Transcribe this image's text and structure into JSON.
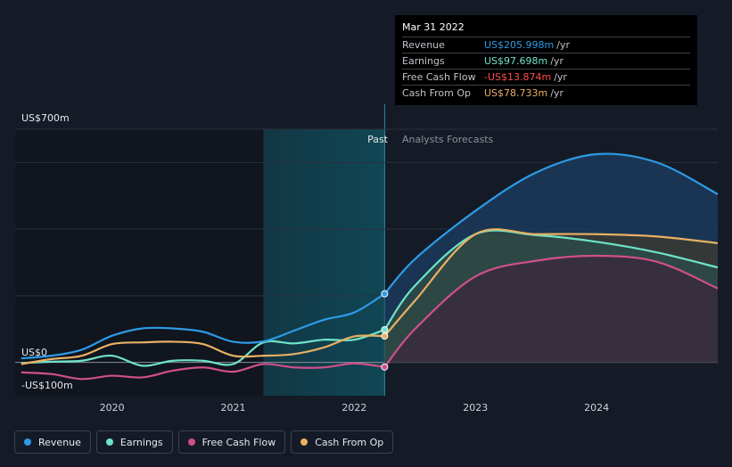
{
  "colors": {
    "revenue": "#2d9be6",
    "earnings": "#6fe3c9",
    "fcf": "#d0508a",
    "cfo": "#e8b064",
    "background": "#151b26"
  },
  "tooltip": {
    "date": "Mar 31 2022",
    "rows": [
      {
        "label": "Revenue",
        "value": "US$205.998m",
        "unit": "/yr",
        "color": "#2d9be6"
      },
      {
        "label": "Earnings",
        "value": "US$97.698m",
        "unit": "/yr",
        "color": "#6fe3c9"
      },
      {
        "label": "Free Cash Flow",
        "value": "-US$13.874m",
        "unit": "/yr",
        "color": "#ff4d4d"
      },
      {
        "label": "Cash From Op",
        "value": "US$78.733m",
        "unit": "/yr",
        "color": "#e8b064"
      }
    ]
  },
  "legend": [
    {
      "label": "Revenue",
      "color": "#2d9be6"
    },
    {
      "label": "Earnings",
      "color": "#6fe3c9"
    },
    {
      "label": "Free Cash Flow",
      "color": "#d0508a"
    },
    {
      "label": "Cash From Op",
      "color": "#e8b064"
    }
  ],
  "chart_data": {
    "type": "line",
    "title": "",
    "xlabel": "",
    "ylabel": "",
    "y_top_label": "US$700m",
    "y_zero_label": "US$0",
    "y_bottom_label": "-US$100m",
    "past_label": "Past",
    "forecast_label": "Analysts Forecasts",
    "ylim": [
      -100,
      700
    ],
    "xlim": [
      2019.2,
      2025.0
    ],
    "past_end": 2022.25,
    "highlight_start": 2021.25,
    "x_ticks": [
      {
        "value": 2020,
        "label": "2020"
      },
      {
        "value": 2021,
        "label": "2021"
      },
      {
        "value": 2022,
        "label": "2022"
      },
      {
        "value": 2023,
        "label": "2023"
      },
      {
        "value": 2024,
        "label": "2024"
      }
    ],
    "gridlines": [
      600,
      400,
      200,
      0
    ],
    "series": [
      {
        "name": "Revenue",
        "key": "revenue",
        "past": [
          [
            2019.25,
            12
          ],
          [
            2019.5,
            20
          ],
          [
            2019.75,
            38
          ],
          [
            2020.0,
            80
          ],
          [
            2020.25,
            102
          ],
          [
            2020.5,
            102
          ],
          [
            2020.75,
            92
          ],
          [
            2021.0,
            62
          ],
          [
            2021.25,
            63
          ],
          [
            2021.5,
            95
          ],
          [
            2021.75,
            128
          ],
          [
            2022.0,
            150
          ],
          [
            2022.25,
            206
          ]
        ],
        "forecast": [
          [
            2022.25,
            206
          ],
          [
            2022.5,
            310
          ],
          [
            2023.0,
            455
          ],
          [
            2023.5,
            570
          ],
          [
            2024.0,
            625
          ],
          [
            2024.5,
            600
          ],
          [
            2025.0,
            505
          ]
        ]
      },
      {
        "name": "Earnings",
        "key": "earnings",
        "past": [
          [
            2019.25,
            -2
          ],
          [
            2019.5,
            2
          ],
          [
            2019.75,
            5
          ],
          [
            2020.0,
            20
          ],
          [
            2020.25,
            -10
          ],
          [
            2020.5,
            5
          ],
          [
            2020.75,
            5
          ],
          [
            2021.0,
            -5
          ],
          [
            2021.25,
            60
          ],
          [
            2021.5,
            57
          ],
          [
            2021.75,
            68
          ],
          [
            2022.0,
            68
          ],
          [
            2022.25,
            98
          ]
        ],
        "forecast": [
          [
            2022.25,
            98
          ],
          [
            2022.5,
            230
          ],
          [
            2023.0,
            385
          ],
          [
            2023.5,
            382
          ],
          [
            2024.0,
            362
          ],
          [
            2024.5,
            330
          ],
          [
            2025.0,
            285
          ]
        ]
      },
      {
        "name": "Free Cash Flow",
        "key": "fcf",
        "past": [
          [
            2019.25,
            -30
          ],
          [
            2019.5,
            -35
          ],
          [
            2019.75,
            -50
          ],
          [
            2020.0,
            -40
          ],
          [
            2020.25,
            -45
          ],
          [
            2020.5,
            -25
          ],
          [
            2020.75,
            -15
          ],
          [
            2021.0,
            -28
          ],
          [
            2021.25,
            -5
          ],
          [
            2021.5,
            -15
          ],
          [
            2021.75,
            -15
          ],
          [
            2022.0,
            -3
          ],
          [
            2022.25,
            -14
          ]
        ],
        "forecast": [
          [
            2022.25,
            -14
          ],
          [
            2022.5,
            100
          ],
          [
            2023.0,
            258
          ],
          [
            2023.5,
            305
          ],
          [
            2024.0,
            320
          ],
          [
            2024.5,
            302
          ],
          [
            2025.0,
            222
          ]
        ]
      },
      {
        "name": "Cash From Op",
        "key": "cfo",
        "past": [
          [
            2019.25,
            -5
          ],
          [
            2019.5,
            10
          ],
          [
            2019.75,
            20
          ],
          [
            2020.0,
            55
          ],
          [
            2020.25,
            60
          ],
          [
            2020.5,
            62
          ],
          [
            2020.75,
            55
          ],
          [
            2021.0,
            20
          ],
          [
            2021.25,
            20
          ],
          [
            2021.5,
            25
          ],
          [
            2021.75,
            45
          ],
          [
            2022.0,
            78
          ],
          [
            2022.25,
            79
          ]
        ],
        "forecast": [
          [
            2022.25,
            79
          ],
          [
            2022.5,
            185
          ],
          [
            2023.0,
            385
          ],
          [
            2023.5,
            385
          ],
          [
            2024.0,
            385
          ],
          [
            2024.5,
            378
          ],
          [
            2025.0,
            358
          ]
        ]
      }
    ]
  }
}
